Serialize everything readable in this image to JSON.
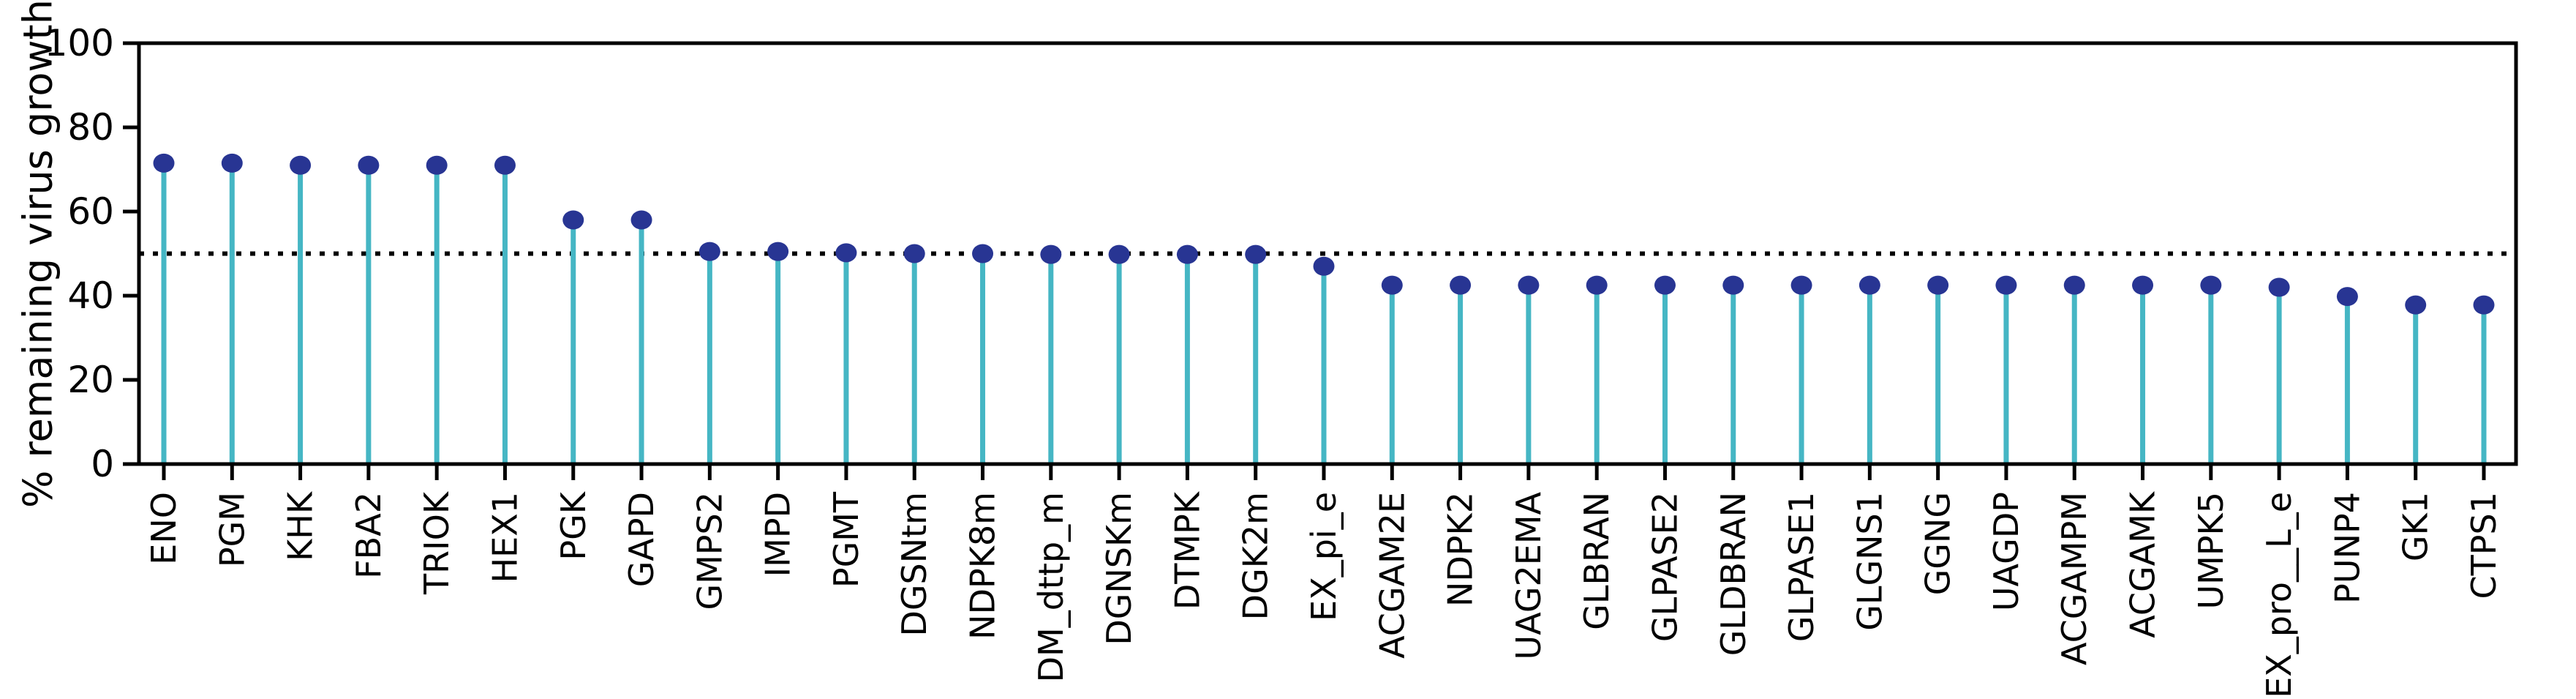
{
  "chart_data": {
    "type": "scatter",
    "subtype": "lollipop-stem",
    "title": "",
    "xlabel": "",
    "ylabel": "% remaining virus growth",
    "ylim": [
      0,
      100
    ],
    "yticks": [
      0,
      20,
      40,
      60,
      80,
      100
    ],
    "grid": false,
    "legend": "none",
    "threshold_line": {
      "y": 50,
      "style": "dotted",
      "color": "#000000"
    },
    "colors": {
      "stem": "#45b6c4",
      "marker": "#283593",
      "axis": "#000000",
      "background": "#ffffff"
    },
    "categories": [
      "ENO",
      "PGM",
      "KHK",
      "FBA2",
      "TRIOK",
      "HEX1",
      "PGK",
      "GAPD",
      "GMPS2",
      "IMPD",
      "PGMT",
      "DGSNtm",
      "NDPK8m",
      "DM_dttp_m",
      "DGNSKm",
      "DTMPK",
      "DGK2m",
      "EX_pi_e",
      "ACGAM2E",
      "NDPK2",
      "UAG2EMA",
      "GLBRAN",
      "GLPASE2",
      "GLDBRAN",
      "GLPASE1",
      "GLGNS1",
      "GGNG",
      "UAGDP",
      "ACGAMPM",
      "ACGAMK",
      "UMPK5",
      "EX_pro__L_e",
      "PUNP4",
      "GK1",
      "CTPS1"
    ],
    "values": [
      71.5,
      71.5,
      71.0,
      71.0,
      71.0,
      71.0,
      58.0,
      58.0,
      50.5,
      50.5,
      50.2,
      50.0,
      50.0,
      49.8,
      49.8,
      49.8,
      49.8,
      47.0,
      42.5,
      42.5,
      42.5,
      42.5,
      42.5,
      42.5,
      42.5,
      42.5,
      42.5,
      42.5,
      42.5,
      42.5,
      42.5,
      42.0,
      39.8,
      37.8,
      37.8
    ]
  }
}
